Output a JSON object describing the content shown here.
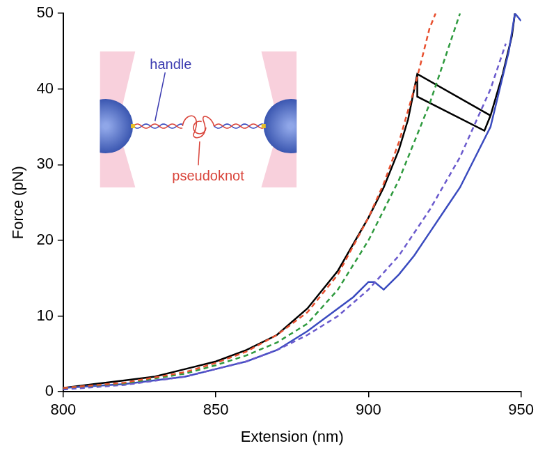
{
  "chart_data": {
    "type": "line",
    "x_label": "Extension (nm)",
    "y_label": "Force (pN)",
    "xlim": [
      800,
      950
    ],
    "xticks": [
      800,
      850,
      900,
      950
    ],
    "ylim": [
      0,
      50
    ],
    "yticks": [
      0,
      10,
      20,
      30,
      40,
      50
    ],
    "grid": false,
    "inset": {
      "handle": "handle",
      "pseudoknot": "pseudoknot"
    },
    "series": [
      {
        "color": "#e8502f",
        "line_style": "dashed",
        "x": [
          800,
          820,
          840,
          850,
          860,
          870,
          880,
          890,
          900,
          905,
          910,
          915,
          920,
          922
        ],
        "values": [
          0.5,
          1.2,
          2.6,
          3.8,
          5.3,
          7.5,
          10.5,
          15.5,
          23,
          27.5,
          33,
          40,
          48,
          50
        ]
      },
      {
        "color": "#2e9a3e",
        "line_style": "dashed",
        "x": [
          800,
          820,
          840,
          850,
          860,
          870,
          880,
          890,
          900,
          910,
          920,
          925,
          930
        ],
        "values": [
          0.5,
          1.1,
          2.4,
          3.5,
          4.8,
          6.5,
          9,
          13.5,
          20,
          28,
          38,
          44,
          50
        ]
      },
      {
        "color": "#6a5acd",
        "line_style": "dashed",
        "x": [
          800,
          820,
          840,
          850,
          860,
          870,
          880,
          890,
          900,
          910,
          920,
          930,
          940,
          945
        ],
        "values": [
          0.3,
          0.9,
          2,
          3,
          4,
          5.5,
          7.5,
          10,
          13.5,
          18,
          24,
          31,
          40,
          46
        ]
      },
      {
        "color": "#3a4bbf",
        "line_style": "solid",
        "x": [
          800,
          820,
          840,
          850,
          860,
          870,
          880,
          890,
          895,
          900,
          902,
          905,
          910,
          915,
          920,
          925,
          930,
          935,
          940,
          943,
          946,
          948,
          950
        ],
        "values": [
          0.5,
          1,
          2,
          3,
          4,
          5.5,
          8,
          11,
          12.5,
          14.5,
          14.5,
          13.5,
          15.5,
          18,
          21,
          24,
          27,
          31,
          35,
          40,
          45,
          50,
          49
        ]
      },
      {
        "color": "#000000",
        "line_style": "solid",
        "x": [
          800,
          810,
          820,
          830,
          840,
          850,
          860,
          870,
          880,
          890,
          900,
          905,
          910,
          913,
          915,
          916,
          940,
          938,
          916,
          916,
          940,
          940,
          944,
          947,
          948
        ],
        "values": [
          0.5,
          1,
          1.5,
          2,
          3,
          4,
          5.5,
          7.5,
          11,
          16,
          23,
          27,
          32,
          36,
          40,
          42,
          36.5,
          34.5,
          39,
          42,
          null,
          36.5,
          42,
          47,
          50
        ]
      }
    ]
  }
}
